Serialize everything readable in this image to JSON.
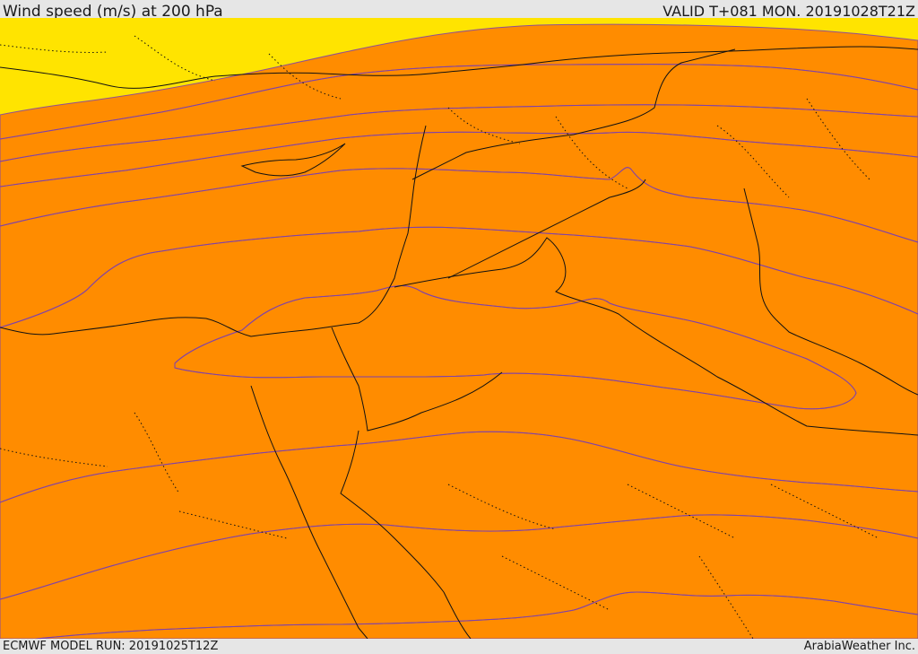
{
  "header": {
    "title": "Wind speed (m/s) at 200 hPa",
    "valid": "VALID T+081 MON. 20191028T21Z"
  },
  "footer": {
    "model_run": "ECMWF MODEL RUN: 20191025T12Z",
    "credit": "ArabiaWeather Inc."
  },
  "map": {
    "variable": "wind speed",
    "level": "200 hPa",
    "palette": [
      "#ffe000",
      "#ffc300",
      "#ffa500",
      "#ff8800",
      "#ff6a00",
      "#ff4d00",
      "#ff3000",
      "#ff1a00",
      "#ff0000"
    ]
  }
}
